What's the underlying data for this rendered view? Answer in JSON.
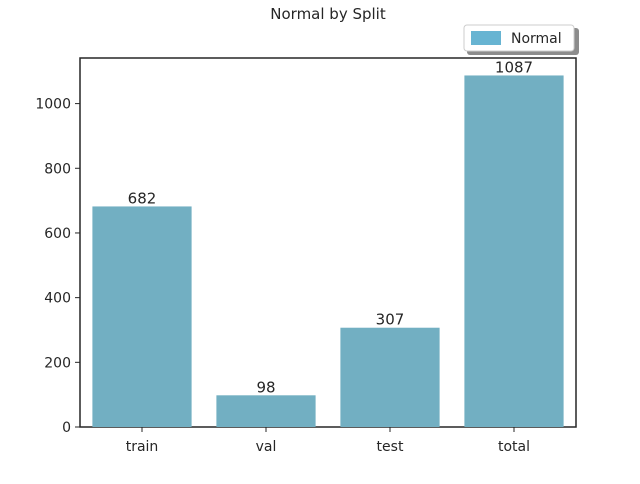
{
  "chart_data": {
    "type": "bar",
    "title": "Normal by Split",
    "xlabel": "",
    "ylabel": "",
    "categories": [
      "train",
      "val",
      "test",
      "total"
    ],
    "series": [
      {
        "name": "Normal",
        "values": [
          682,
          98,
          307,
          1087
        ],
        "color": "#72afc2"
      }
    ],
    "data_labels": [
      "682",
      "98",
      "307",
      "1087"
    ],
    "ylim": [
      0,
      1141
    ],
    "yticks": [
      0,
      200,
      400,
      600,
      800,
      1000
    ],
    "legend_position": "top-right",
    "grid": false,
    "legend_swatch_color": "#67b4d2"
  }
}
